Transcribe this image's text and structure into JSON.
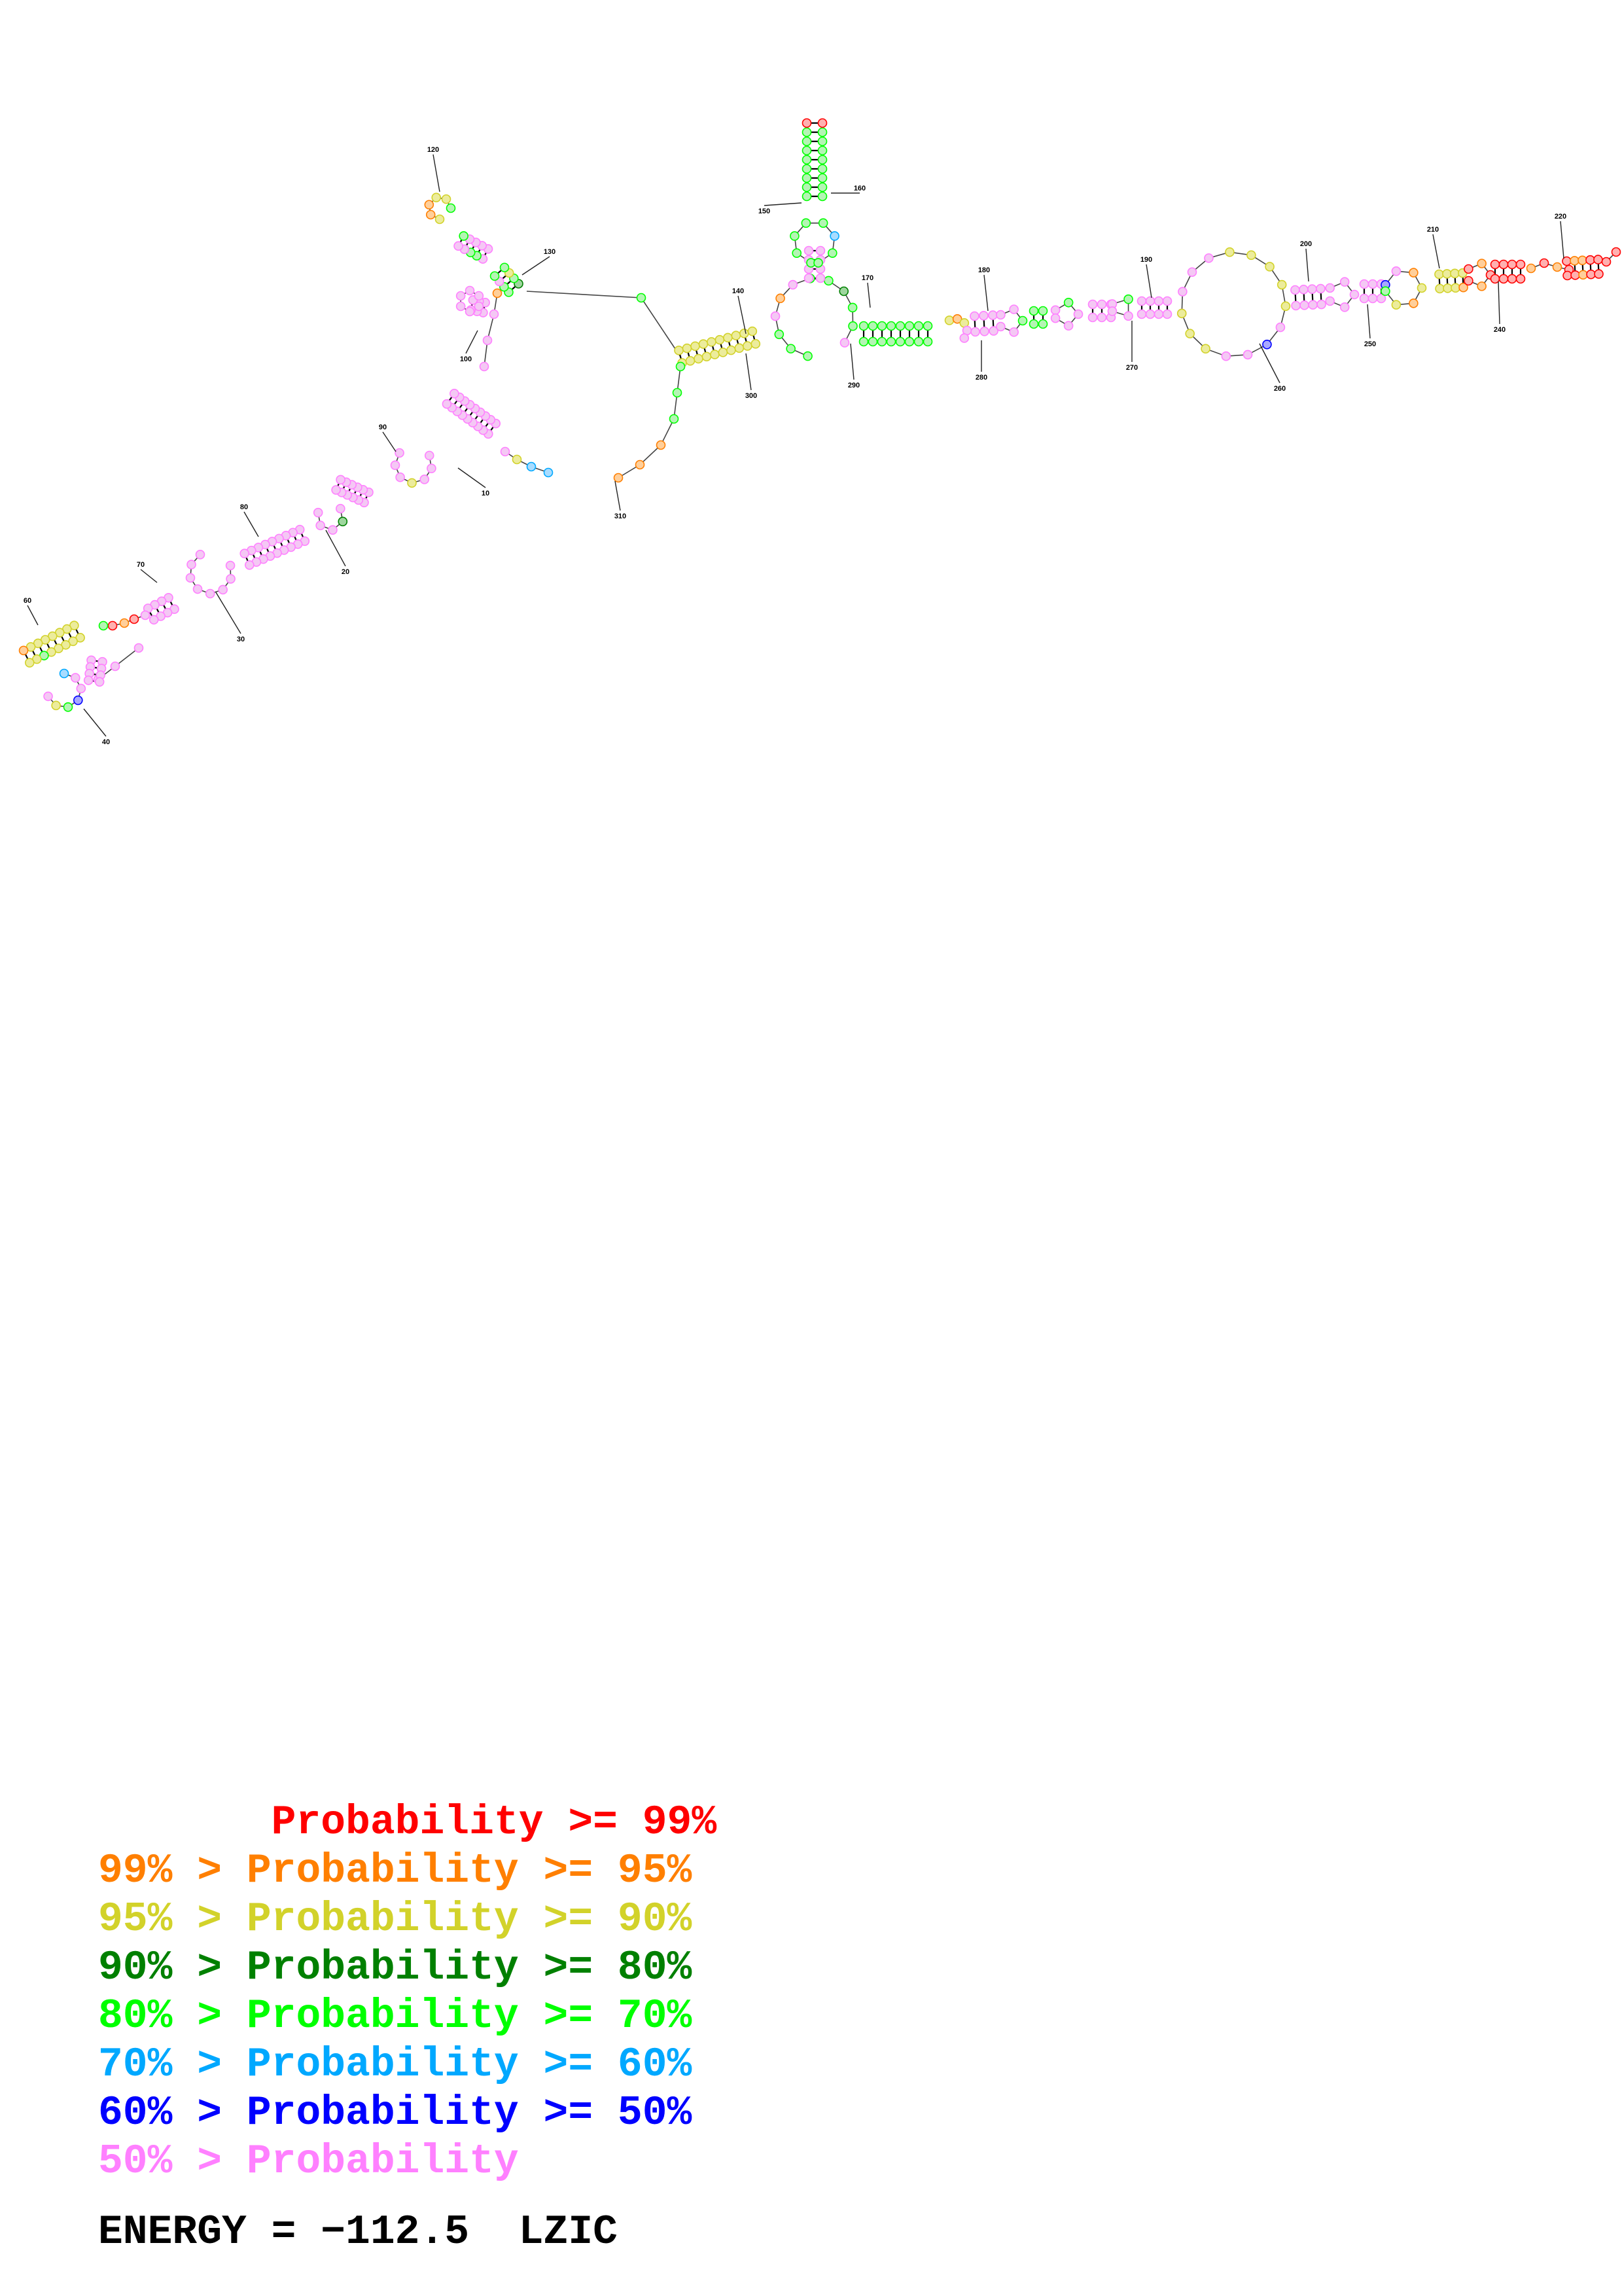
{
  "diagram": {
    "type": "rna-secondary-structure",
    "position_labels": [
      "10",
      "20",
      "30",
      "40",
      "60",
      "70",
      "80",
      "90",
      "100",
      "120",
      "130",
      "140",
      "150",
      "160",
      "170",
      "180",
      "190",
      "200",
      "210",
      "220",
      "240",
      "250",
      "260",
      "270",
      "280",
      "290",
      "300",
      "310"
    ],
    "probability_colors": {
      "p99": "#ff0000",
      "p95": "#ff7f00",
      "p90": "#d2d22a",
      "p80": "#008000",
      "p70": "#00ff00",
      "p60": "#00a8ff",
      "p50": "#0000ff",
      "below50": "#ff80ff"
    }
  },
  "legend": [
    {
      "text": "       Probability >= 99%",
      "color": "#ff0000"
    },
    {
      "text": "99% > Probability >= 95%",
      "color": "#ff7f00"
    },
    {
      "text": "95% > Probability >= 90%",
      "color": "#d2d22a"
    },
    {
      "text": "90% > Probability >= 80%",
      "color": "#008000"
    },
    {
      "text": "80% > Probability >= 70%",
      "color": "#00ff00"
    },
    {
      "text": "70% > Probability >= 60%",
      "color": "#00a8ff"
    },
    {
      "text": "60% > Probability >= 50%",
      "color": "#0000ff"
    },
    {
      "text": "50% > Probability",
      "color": "#ff80ff"
    }
  ],
  "energy": "ENERGY = −112.5  LZIC"
}
